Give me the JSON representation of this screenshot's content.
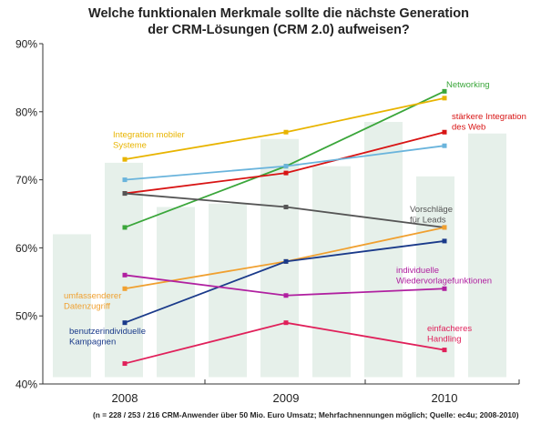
{
  "chart_data": {
    "type": "line",
    "title_line1": "Welche funktionalen Merkmale sollte die nächste Generation",
    "title_line2": "der CRM-Lösungen (CRM 2.0) aufweisen?",
    "footnote": "(n = 228 / 253 / 216 CRM-Anwender über 50 Mio. Euro Umsatz; Mehrfachnennungen möglich; Quelle: ec4u; 2008-2010)",
    "x": [
      "2008",
      "2009",
      "2010"
    ],
    "ylim": [
      40,
      90
    ],
    "y_ticks": [
      "90%",
      "80%",
      "70%",
      "60%",
      "50%",
      "40%"
    ],
    "y_tick_values": [
      90,
      80,
      70,
      60,
      50,
      40
    ],
    "series": [
      {
        "name": "Networking",
        "color": "#3aa63a",
        "values": [
          63,
          72,
          83
        ],
        "label_lines": [
          "Networking"
        ]
      },
      {
        "name": "stärkere Integration des Web",
        "color": "#d81414",
        "values": [
          68,
          71,
          77
        ],
        "label_lines": [
          "stärkere Integration",
          "des Web"
        ]
      },
      {
        "name": "Integration mobiler Systeme",
        "color": "#e8b400",
        "values": [
          73,
          77,
          82
        ],
        "label_lines": [
          "Integration mobiler",
          "Systeme"
        ]
      },
      {
        "name": "",
        "color": "#6ab4dc",
        "values": [
          70,
          72,
          75
        ],
        "label_lines": []
      },
      {
        "name": "Vorschläge für Leads",
        "color": "#555555",
        "values": [
          68,
          66,
          63
        ],
        "label_lines": [
          "Vorschläge",
          "für Leads"
        ]
      },
      {
        "name": "umfassenderer Datenzugriff",
        "color": "#f0a030",
        "values": [
          54,
          58,
          63
        ],
        "label_lines": [
          "umfassenderer",
          "Datenzugriff"
        ]
      },
      {
        "name": "benutzerindividuelle Kampagnen",
        "color": "#1a3a8a",
        "values": [
          49,
          58,
          61
        ],
        "label_lines": [
          "benutzerindividuelle",
          "Kampagnen"
        ]
      },
      {
        "name": "individuelle Wiedervorlagefunktionen",
        "color": "#b020a0",
        "values": [
          56,
          53,
          54
        ],
        "label_lines": [
          "individuelle",
          "Wiedervorlagefunktionen"
        ]
      },
      {
        "name": "einfacheres Handling",
        "color": "#e0205a",
        "values": [
          43,
          49,
          45
        ],
        "label_lines": [
          "einfacheres",
          "Handling"
        ]
      }
    ]
  }
}
